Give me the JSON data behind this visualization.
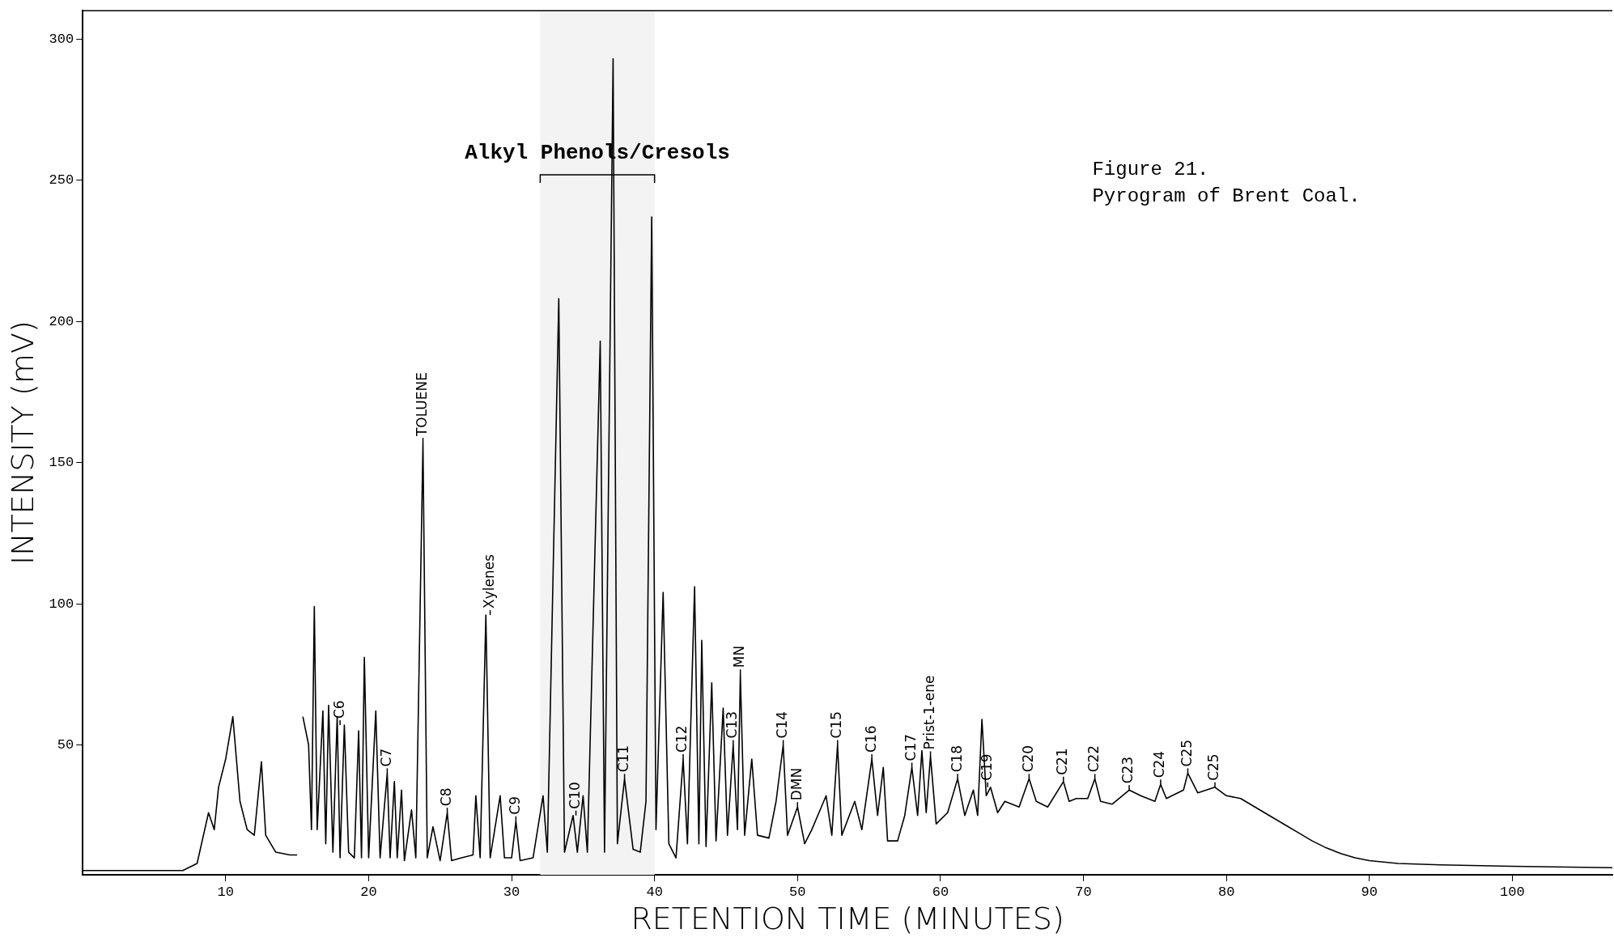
{
  "chart_data": {
    "type": "line",
    "title": "Figure 21.",
    "subtitle": "Pyrogram of Brent Coal.",
    "xlabel": "RETENTION TIME (MINUTES)",
    "ylabel": "INTENSITY (mV)",
    "x": [
      0,
      7,
      8,
      8.8,
      9.2,
      9.5,
      10,
      10.5,
      11,
      11.5,
      12,
      12.5,
      12.8,
      13.5,
      14.5,
      15,
      15.1,
      15.3,
      15.4,
      15.8,
      16,
      16.2,
      16.4,
      16.8,
      17,
      17.2,
      17.5,
      17.8,
      18,
      18.3,
      18.6,
      19,
      19.3,
      19.5,
      19.7,
      20,
      20.5,
      20.8,
      21.3,
      21.5,
      21.8,
      22,
      22.3,
      22.5,
      23,
      23.3,
      23.8,
      24.1,
      24.5,
      25,
      25.5,
      25.8,
      26.5,
      27.3,
      27.5,
      27.8,
      28.2,
      28.5,
      29.2,
      29.5,
      30,
      30.3,
      30.6,
      31.5,
      32.2,
      32.5,
      33.3,
      33.7,
      34.3,
      34.6,
      35,
      35.3,
      36.2,
      36.5,
      37.1,
      37.4,
      37.9,
      38.5,
      39,
      39.4,
      39.8,
      40.1,
      40.6,
      41,
      41.5,
      42,
      42.3,
      42.8,
      43.1,
      43.3,
      43.6,
      44,
      44.3,
      44.8,
      45.1,
      45.5,
      45.8,
      46,
      46.3,
      46.8,
      47.2,
      48,
      48.5,
      49,
      49.3,
      50,
      50.5,
      51,
      52,
      52.4,
      52.8,
      53.1,
      54,
      54.5,
      55.2,
      55.6,
      56,
      56.3,
      57,
      57.5,
      58,
      58.4,
      58.7,
      59,
      59.3,
      59.7,
      60.5,
      61.2,
      61.7,
      62.3,
      62.6,
      62.9,
      63.2,
      63.5,
      64,
      64.5,
      65.5,
      66.2,
      66.7,
      67.5,
      68.6,
      69,
      69.5,
      70.3,
      70.8,
      71.2,
      72,
      73.2,
      74,
      75,
      75.4,
      75.8,
      77,
      77.3,
      78,
      79.2,
      80,
      81,
      82,
      83,
      84,
      85,
      86,
      87,
      88,
      89,
      90,
      92,
      95,
      100,
      107
    ],
    "values": [
      5.5,
      5.5,
      8,
      26,
      20,
      35,
      45,
      60,
      30,
      20,
      18,
      44,
      18,
      12,
      11,
      11,
      null,
      null,
      60,
      50,
      20,
      99,
      20,
      62,
      15,
      64,
      12,
      60,
      10,
      57,
      12,
      10,
      55,
      10,
      81,
      10,
      62,
      10,
      40,
      10,
      37,
      10,
      34,
      9,
      27,
      10,
      157,
      10,
      21,
      9,
      26,
      9,
      10,
      11,
      32,
      10,
      96,
      10,
      32,
      10,
      10,
      23,
      9,
      10,
      32,
      12,
      208,
      12,
      25,
      12,
      32,
      12,
      193,
      12,
      293,
      15,
      38,
      13,
      12,
      30,
      237,
      20,
      104,
      15,
      10,
      45,
      15,
      106,
      15,
      87,
      14,
      72,
      16,
      63,
      18,
      50,
      20,
      75,
      18,
      45,
      18,
      17,
      30,
      50,
      18,
      28,
      15,
      20,
      32,
      18,
      50,
      18,
      30,
      20,
      45,
      25,
      42,
      16,
      16,
      25,
      42,
      25,
      48,
      26,
      46,
      22,
      26,
      38,
      25,
      34,
      25,
      59,
      32,
      35,
      26,
      30,
      28,
      38,
      30,
      28,
      37,
      30,
      31,
      31,
      38,
      30,
      29,
      34,
      32,
      30,
      36,
      31,
      34,
      40,
      33,
      35,
      32,
      31,
      28,
      25,
      22,
      19,
      16,
      13.5,
      11.5,
      10,
      9,
      8,
      7.5,
      7,
      6.5
    ],
    "color": "#000000",
    "marker": "none",
    "line_style": "solid",
    "grid": false,
    "legend": false,
    "xlim": [
      0,
      107
    ],
    "xticks": [
      10,
      20,
      30,
      40,
      50,
      60,
      70,
      80,
      90,
      100
    ],
    "ylim": [
      4,
      310
    ],
    "yticks": [
      50,
      100,
      150,
      200,
      250,
      300
    ],
    "bands": [
      {
        "axis": "x",
        "from": 32,
        "to": 40,
        "label": "Alkyl Phenols/Cresols",
        "color": "#f3f3f3"
      }
    ],
    "annotations": [
      {
        "text": "C6",
        "x": 18,
        "y": 57
      },
      {
        "text": "C7",
        "x": 21.3,
        "y": 40
      },
      {
        "text": "TOLUENE",
        "x": 23.8,
        "y": 157
      },
      {
        "text": "C8",
        "x": 25.5,
        "y": 26
      },
      {
        "text": "Xylenes",
        "x": 28.5,
        "y": 96
      },
      {
        "text": "C9",
        "x": 30.3,
        "y": 23
      },
      {
        "text": "C10",
        "x": 34.5,
        "y": 25
      },
      {
        "text": "C11",
        "x": 37.9,
        "y": 38
      },
      {
        "text": "C12",
        "x": 42,
        "y": 45
      },
      {
        "text": "C13",
        "x": 45.5,
        "y": 50
      },
      {
        "text": "MN",
        "x": 46,
        "y": 75
      },
      {
        "text": "C14",
        "x": 49,
        "y": 50
      },
      {
        "text": "DMN",
        "x": 50,
        "y": 28
      },
      {
        "text": "C15",
        "x": 52.8,
        "y": 50
      },
      {
        "text": "C16",
        "x": 55.2,
        "y": 45
      },
      {
        "text": "C17",
        "x": 58,
        "y": 42
      },
      {
        "text": "Prist-1-ene",
        "x": 59.3,
        "y": 46
      },
      {
        "text": "C18",
        "x": 61.2,
        "y": 38
      },
      {
        "text": "C19",
        "x": 63.3,
        "y": 35
      },
      {
        "text": "C20",
        "x": 66.2,
        "y": 38
      },
      {
        "text": "C21",
        "x": 68.6,
        "y": 37
      },
      {
        "text": "C22",
        "x": 70.8,
        "y": 38
      },
      {
        "text": "C23",
        "x": 73.2,
        "y": 34
      },
      {
        "text": "C24",
        "x": 75.4,
        "y": 36
      },
      {
        "text": "C25",
        "x": 77.3,
        "y": 40
      },
      {
        "text": "C25",
        "x": 79.2,
        "y": 35
      }
    ]
  }
}
